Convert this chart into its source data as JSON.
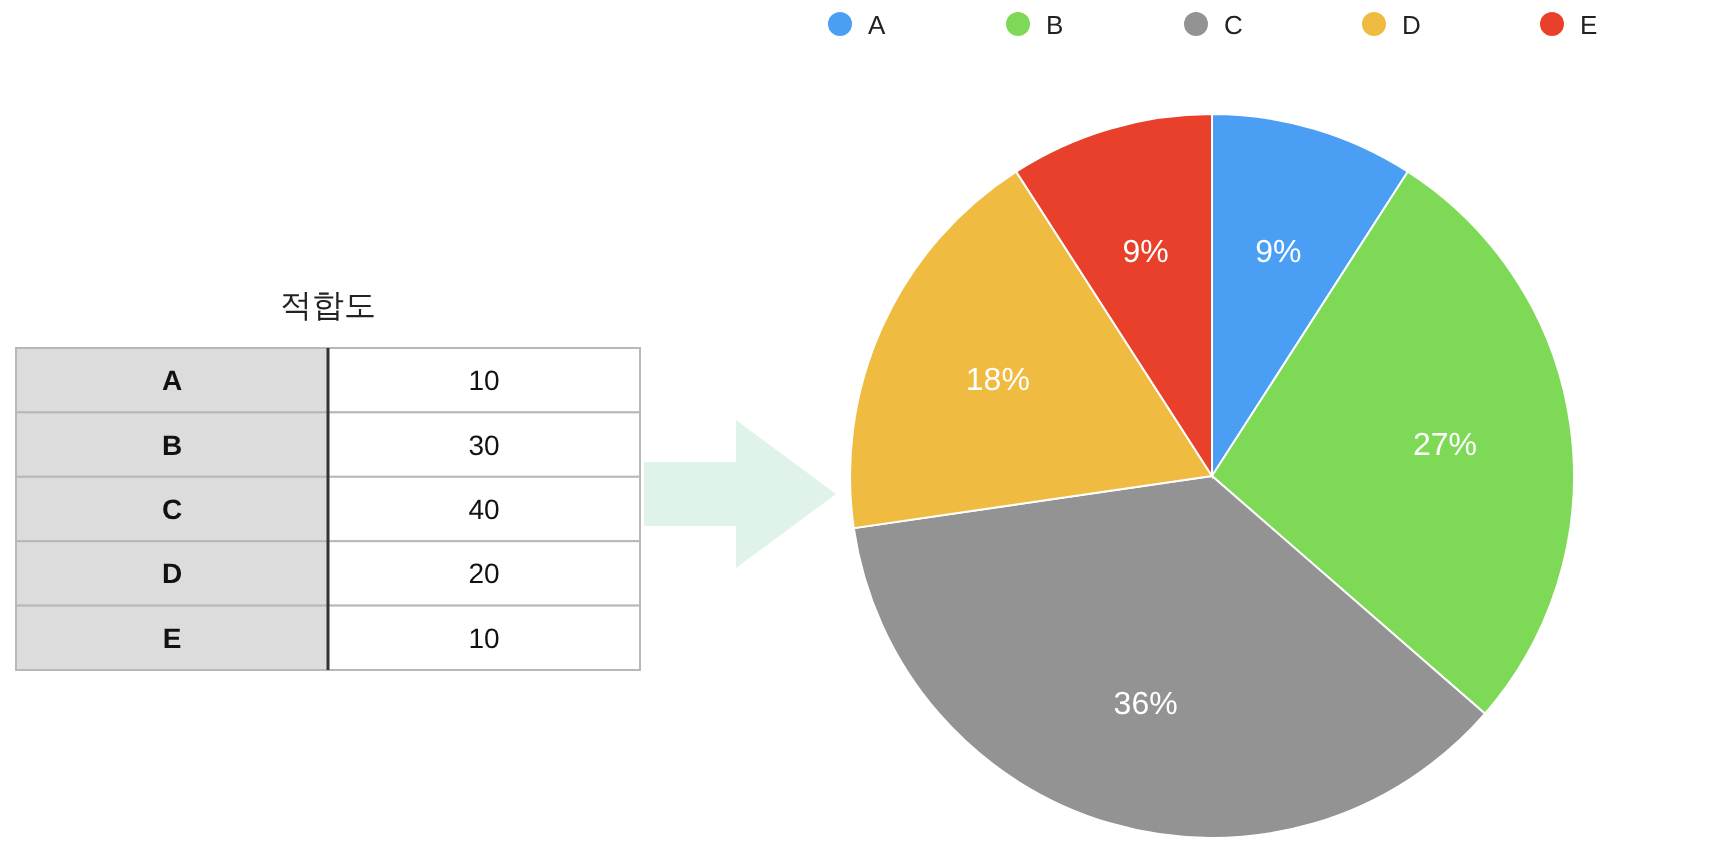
{
  "chart_data": [
    {
      "type": "other",
      "title": "적합도",
      "categories": [
        "A",
        "B",
        "C",
        "D",
        "E"
      ],
      "values": [
        10,
        30,
        40,
        20,
        10
      ],
      "data_labels": true
    },
    {
      "type": "pie",
      "categories": [
        "A",
        "B",
        "C",
        "D",
        "E"
      ],
      "values": [
        9.1,
        27.3,
        36.3,
        18.2,
        9.1
      ],
      "colors": [
        "#4a9ff5",
        "#7ed957",
        "#939393",
        "#efbb40",
        "#e8402a"
      ],
      "value_labels": [
        "9%",
        "27%",
        "36%",
        "18%",
        "9%"
      ],
      "legend": "top"
    }
  ]
}
